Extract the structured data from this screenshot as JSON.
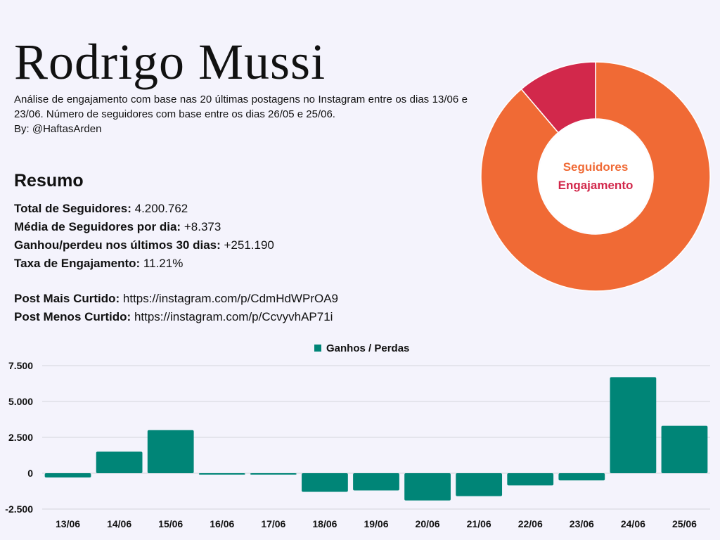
{
  "header": {
    "title": "Rodrigo Mussi",
    "description": "Análise de engajamento com base nas 20 últimas postagens no Instagram entre os dias 13/06 e 23/06. Número de seguidores com base entre os dias 26/05 e 25/06.",
    "byline": "By: @HaftasArden"
  },
  "summary": {
    "heading": "Resumo",
    "stats": [
      {
        "label": "Total de Seguidores:",
        "value": "4.200.762"
      },
      {
        "label": "Média de Seguidores por dia:",
        "value": "+8.373"
      },
      {
        "label": "Ganhou/perdeu nos últimos 30 dias:",
        "value": "+251.190"
      },
      {
        "label": "Taxa de Engajamento:",
        "value": "11.21%"
      }
    ],
    "posts": [
      {
        "label": "Post Mais Curtido:",
        "value": "https://instagram.com/p/CdmHdWPrOA9"
      },
      {
        "label": "Post Menos Curtido:",
        "value": "https://instagram.com/p/CcvyvhAP71i"
      }
    ]
  },
  "colors": {
    "background": "#f4f3fc",
    "followers": "#f06a35",
    "engagement": "#d2284b",
    "bars": "#008577",
    "grid": "#d5d5dc"
  },
  "chart_data": [
    {
      "type": "pie",
      "variant": "donut",
      "labels": [
        "Seguidores",
        "Engajamento"
      ],
      "values": [
        88.79,
        11.21
      ]
    },
    {
      "type": "bar",
      "categories": [
        "13/06",
        "14/06",
        "15/06",
        "16/06",
        "17/06",
        "18/06",
        "19/06",
        "20/06",
        "21/06",
        "22/06",
        "23/06",
        "24/06",
        "25/06"
      ],
      "series": [
        {
          "name": "Ganhos / Perdas",
          "values": [
            -300,
            1500,
            3000,
            -100,
            -100,
            -1300,
            -1200,
            -1900,
            -1600,
            -850,
            -500,
            6700,
            3300
          ]
        }
      ],
      "yticks": [
        "7.500",
        "5.000",
        "2.500",
        "0",
        "-2.500"
      ],
      "ylim": [
        -2500,
        7500
      ],
      "grid": true,
      "legend": "top-center"
    }
  ]
}
